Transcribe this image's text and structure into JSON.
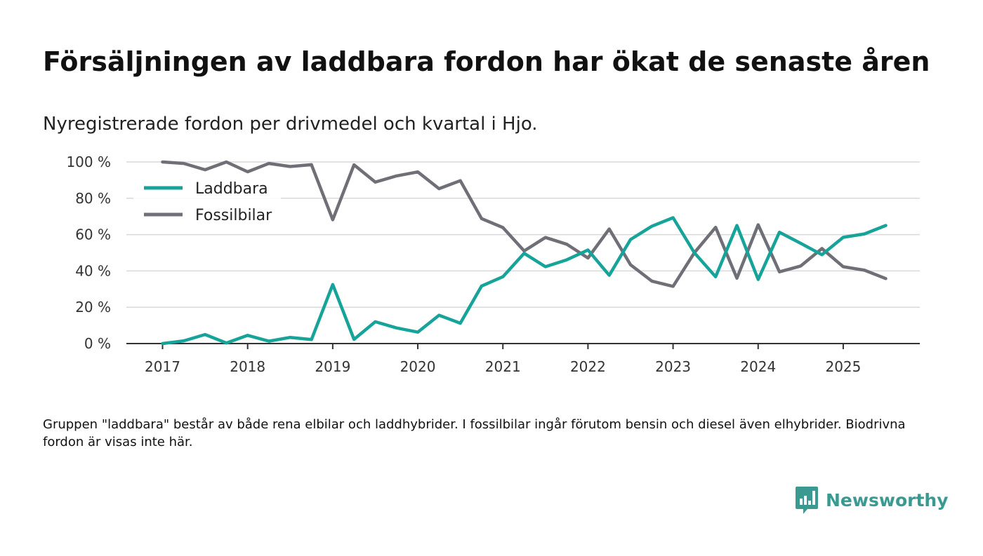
{
  "title": "Försäljningen av laddbara fordon har ökat de senaste åren",
  "subtitle": "Nyregistrerade fordon per drivmedel och kvartal i Hjo.",
  "footnote": "Gruppen \"laddbara\" består av både rena elbilar och laddhybrider. I fossilbilar ingår förutom bensin och diesel även elhybrider. Biodrivna fordon är visas inte här.",
  "brand": {
    "name": "Newsworthy",
    "icon": "newsworthy-logo-icon"
  },
  "colors": {
    "laddbara": "#16a399",
    "fossilbilar": "#6f6f77",
    "grid": "#d9d9d9",
    "axis": "#333333"
  },
  "chart_data": {
    "type": "line",
    "title": "Försäljningen av laddbara fordon har ökat de senaste åren",
    "xlabel": "",
    "ylabel": "",
    "ylim": [
      0,
      100
    ],
    "yticks": [
      0,
      20,
      40,
      60,
      80,
      100
    ],
    "ytick_labels": [
      "0 %",
      "20 %",
      "40 %",
      "60 %",
      "80 %",
      "100 %"
    ],
    "xlim": [
      2017.0,
      2025.75
    ],
    "xticks": [
      2017,
      2018,
      2019,
      2020,
      2021,
      2022,
      2023,
      2024,
      2025
    ],
    "xtick_labels": [
      "2017",
      "2018",
      "2019",
      "2020",
      "2021",
      "2022",
      "2023",
      "2024",
      "2025"
    ],
    "grid": true,
    "legend_position": "top-left",
    "x": [
      2017.0,
      2017.25,
      2017.5,
      2017.75,
      2018.0,
      2018.25,
      2018.5,
      2018.75,
      2019.0,
      2019.25,
      2019.5,
      2019.75,
      2020.0,
      2020.25,
      2020.5,
      2020.75,
      2021.0,
      2021.25,
      2021.5,
      2021.75,
      2022.0,
      2022.25,
      2022.5,
      2022.75,
      2023.0,
      2023.25,
      2023.5,
      2023.75,
      2024.0,
      2024.25,
      2024.5,
      2024.75,
      2025.0,
      2025.25,
      2025.5
    ],
    "series": [
      {
        "name": "Laddbara",
        "color": "#16a399",
        "values": [
          0,
          1.5,
          5,
          0.3,
          4.5,
          1.3,
          3.4,
          2.2,
          32.5,
          2.3,
          12,
          8.6,
          6.3,
          15.6,
          11.2,
          31.7,
          36.8,
          49.7,
          42.3,
          46.1,
          51.5,
          37.6,
          57.3,
          64.6,
          69.3,
          50,
          36.8,
          65,
          35.3,
          61.3,
          55.2,
          48.9,
          58.5,
          60.4,
          65
        ]
      },
      {
        "name": "Fossilbilar",
        "color": "#6f6f77",
        "values": [
          100,
          99.2,
          95.7,
          100,
          94.6,
          99.2,
          97.5,
          98.5,
          68.2,
          98.4,
          88.9,
          92.3,
          94.5,
          85.3,
          89.7,
          68.8,
          63.9,
          51,
          58.4,
          54.7,
          47.1,
          63.1,
          43.4,
          34.4,
          31.5,
          50,
          64,
          36,
          65.4,
          39.5,
          42.7,
          52.3,
          42.3,
          40.4,
          35.8
        ]
      }
    ]
  }
}
